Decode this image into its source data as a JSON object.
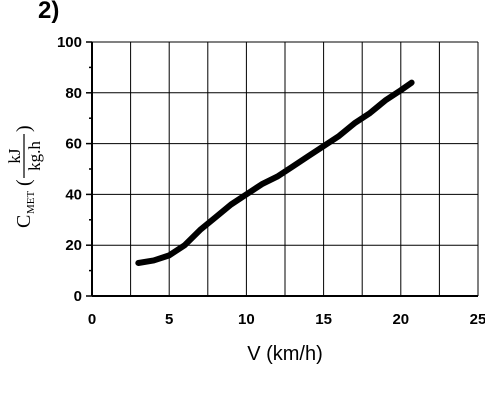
{
  "chart_data": {
    "type": "line",
    "title": "2)",
    "xlabel": "V (km/h)",
    "ylabel": {
      "symbol": "C",
      "subscript": "MET",
      "open": "(",
      "numerator": "kJ",
      "denominator": "kg.h",
      "close": ")"
    },
    "x": [
      3,
      4,
      5,
      6,
      7,
      8,
      9,
      10,
      11,
      12,
      13,
      14,
      15,
      16,
      17,
      18,
      19,
      20,
      20.7
    ],
    "series": [
      {
        "name": "C_MET",
        "color": "#000000",
        "values": [
          13,
          14,
          16,
          20,
          26,
          31,
          36,
          40,
          44,
          47,
          51,
          55,
          59,
          63,
          68,
          72,
          77,
          81,
          84
        ]
      }
    ],
    "xlim": [
      0,
      25
    ],
    "xticks": [
      0,
      5,
      10,
      15,
      20,
      25
    ],
    "ylim": [
      0,
      100
    ],
    "yticks": [
      0,
      20,
      40,
      60,
      80,
      100
    ],
    "xminor": [
      2.5,
      7.5,
      12.5,
      17.5,
      22.5
    ],
    "yminor": [
      10,
      30,
      50,
      70,
      90
    ],
    "grid": true
  }
}
